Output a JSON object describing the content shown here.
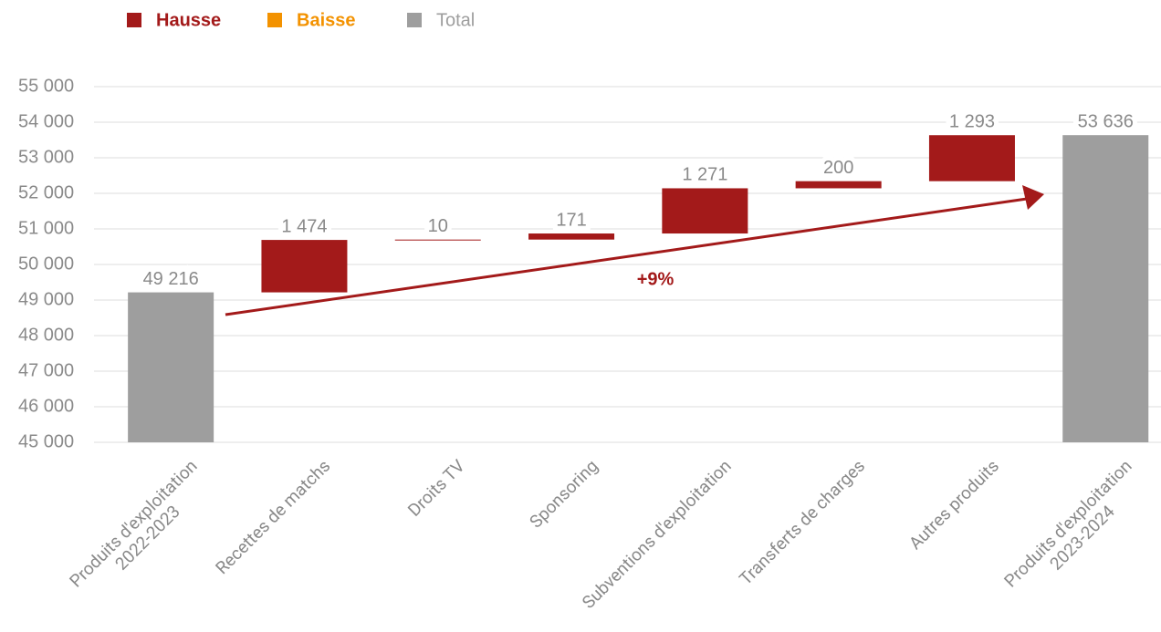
{
  "chart_data": {
    "type": "waterfall",
    "categories": [
      "Produits d'exploitation\n2022-2023",
      "Recettes de matchs",
      "Droits TV",
      "Sponsoring",
      "Subventions d'exploitation",
      "Transferts de charges",
      "Autres produits",
      "Produits d'exploitation\n2023-2024"
    ],
    "series": [
      {
        "name": "Hausse",
        "color": "#a31a1a",
        "values": [
          null,
          1474,
          10,
          171,
          1271,
          200,
          1293,
          null
        ],
        "value_labels": [
          null,
          "1 474",
          "10",
          "171",
          "1 271",
          "200",
          "1 293",
          null
        ]
      },
      {
        "name": "Baisse",
        "color": "#f39200",
        "values": [
          null,
          null,
          null,
          null,
          null,
          null,
          null,
          null
        ]
      },
      {
        "name": "Total",
        "color": "#9e9e9e",
        "values": [
          49216,
          null,
          null,
          null,
          null,
          null,
          null,
          53636
        ],
        "value_labels": [
          "49 216",
          null,
          null,
          null,
          null,
          null,
          null,
          "53 636"
        ]
      }
    ],
    "ylim": [
      45000,
      55000
    ],
    "yticks": [
      {
        "value": 45000,
        "label": "45 000"
      },
      {
        "value": 46000,
        "label": "46 000"
      },
      {
        "value": 47000,
        "label": "47 000"
      },
      {
        "value": 48000,
        "label": "48 000"
      },
      {
        "value": 49000,
        "label": "49 000"
      },
      {
        "value": 50000,
        "label": "50 000"
      },
      {
        "value": 51000,
        "label": "51 000"
      },
      {
        "value": 52000,
        "label": "52 000"
      },
      {
        "value": 53000,
        "label": "53 000"
      },
      {
        "value": 54000,
        "label": "54 000"
      },
      {
        "value": 55000,
        "label": "55 000"
      }
    ],
    "grid": true,
    "annotation": "+9%"
  }
}
